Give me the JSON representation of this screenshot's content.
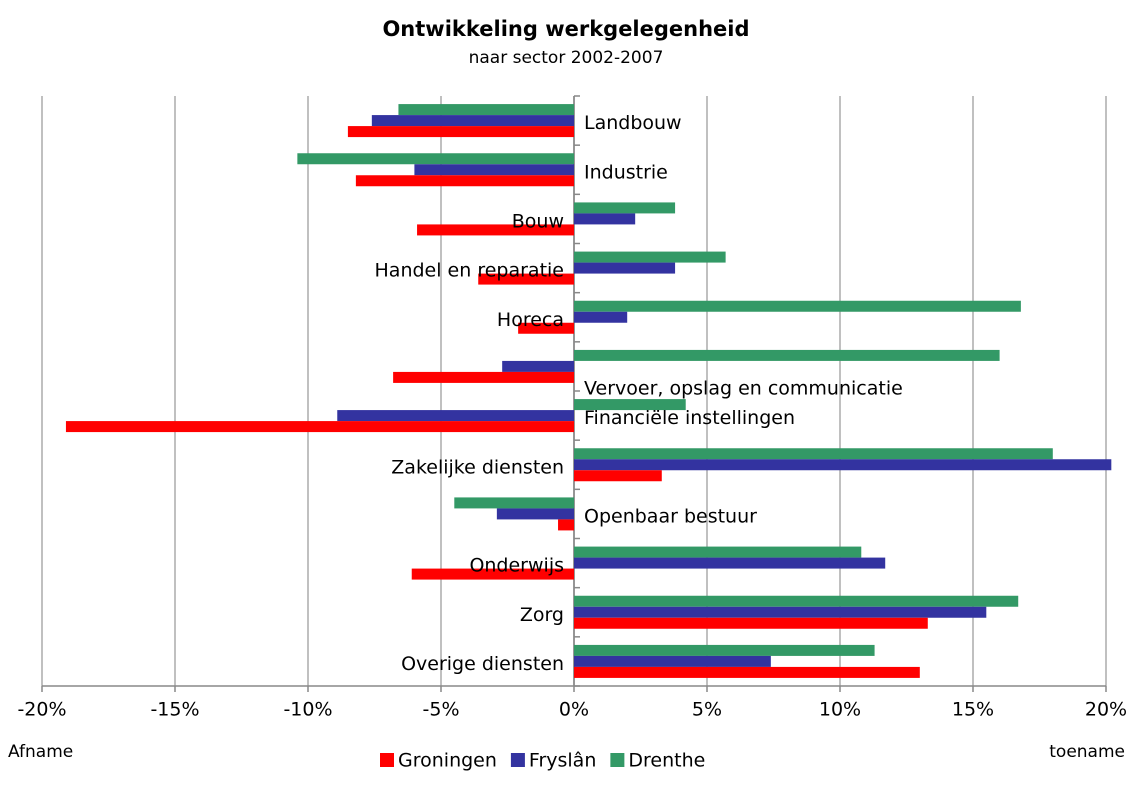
{
  "chart_data": {
    "type": "hbar",
    "title": "Ontwikkeling werkgelegenheid",
    "subtitle": "naar sector 2002-2007",
    "categories": [
      "Landbouw",
      "Industrie",
      "Bouw",
      "Handel en reparatie",
      "Horeca",
      "Vervoer, opslag en communicatie",
      "Financiële instellingen",
      "Zakelijke diensten",
      "Openbaar bestuur",
      "Onderwijs",
      "Zorg",
      "Overige diensten"
    ],
    "series": [
      {
        "name": "Groningen",
        "color": "#ff0000",
        "values": [
          -8.5,
          -8.2,
          -5.9,
          -3.6,
          -2.1,
          -6.8,
          -19.1,
          3.3,
          -0.6,
          -6.1,
          13.3,
          13.0
        ]
      },
      {
        "name": "Fryslân",
        "color": "#3333a0",
        "values": [
          -7.6,
          -6.0,
          2.3,
          3.8,
          2.0,
          -2.7,
          -8.9,
          20.2,
          -2.9,
          11.7,
          15.5,
          7.4
        ]
      },
      {
        "name": "Drenthe",
        "color": "#339966",
        "values": [
          -6.6,
          -10.4,
          3.8,
          5.7,
          16.8,
          16.0,
          4.2,
          18.0,
          -4.5,
          10.8,
          16.7,
          11.3
        ]
      }
    ],
    "xlim": [
      -20,
      20
    ],
    "xticks": [
      {
        "value": -20,
        "label": "-20%"
      },
      {
        "value": -15,
        "label": "-15%"
      },
      {
        "value": -10,
        "label": "-10%"
      },
      {
        "value": -5,
        "label": "-5%"
      },
      {
        "value": 0,
        "label": "0%"
      },
      {
        "value": 5,
        "label": "5%"
      },
      {
        "value": 10,
        "label": "10%"
      },
      {
        "value": 15,
        "label": "15%"
      },
      {
        "value": 20,
        "label": "20%"
      }
    ],
    "grid": true,
    "left_note": "Afname",
    "right_note": "toename"
  }
}
